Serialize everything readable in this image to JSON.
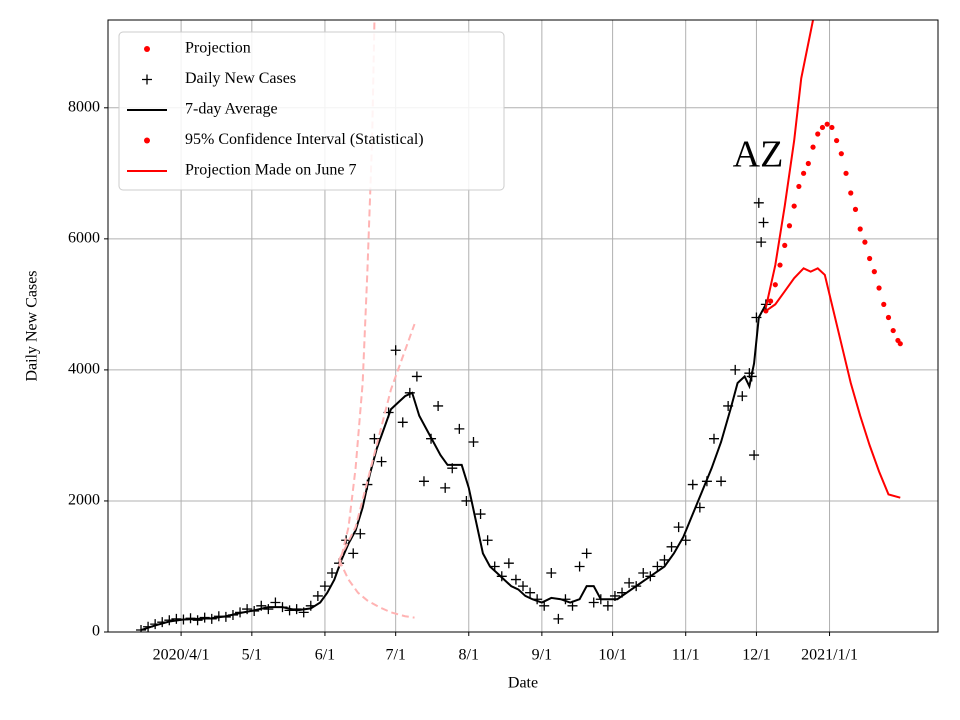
{
  "chart_data": {
    "type": "line",
    "annotation": "AZ",
    "xlabel": "Date",
    "ylabel": "Daily New Cases",
    "xlim": [
      60,
      412
    ],
    "ylim": [
      0,
      9340
    ],
    "xticks": [
      {
        "value": 91,
        "label": "2020/4/1"
      },
      {
        "value": 121,
        "label": "5/1"
      },
      {
        "value": 152,
        "label": "6/1"
      },
      {
        "value": 182,
        "label": "7/1"
      },
      {
        "value": 213,
        "label": "8/1"
      },
      {
        "value": 244,
        "label": "9/1"
      },
      {
        "value": 274,
        "label": "10/1"
      },
      {
        "value": 305,
        "label": "11/1"
      },
      {
        "value": 335,
        "label": "12/1"
      },
      {
        "value": 366,
        "label": "2021/1/1"
      }
    ],
    "yticks": [
      0,
      2000,
      4000,
      6000,
      8000
    ],
    "grid": true,
    "legend": "upper left",
    "series": [
      {
        "name": "Projection",
        "style": "dot",
        "color": "#ff0000",
        "lines": [
          {
            "x": [
              339,
              341,
              343,
              345,
              347,
              349,
              351,
              353,
              355,
              357,
              359,
              361,
              363,
              365,
              367,
              369,
              371,
              373,
              375,
              377,
              379,
              381,
              383,
              385,
              387,
              389,
              391,
              393,
              395,
              396
            ],
            "values": [
              4900,
              5050,
              5300,
              5600,
              5900,
              6200,
              6500,
              6800,
              7000,
              7150,
              7400,
              7600,
              7700,
              7750,
              7700,
              7500,
              7300,
              7000,
              6700,
              6450,
              6150,
              5950,
              5700,
              5500,
              5250,
              5000,
              4800,
              4600,
              4450,
              4400
            ]
          }
        ]
      },
      {
        "name": "Daily New Cases",
        "style": "plus",
        "color": "#000000",
        "lines": [
          {
            "x": [
              74,
              77,
              80,
              83,
              86,
              89,
              92,
              95,
              98,
              101,
              104,
              107,
              110,
              113,
              116,
              119,
              122,
              125,
              128,
              131,
              134,
              137,
              140,
              143,
              146,
              149,
              152,
              155,
              158,
              161,
              164,
              167,
              170,
              173,
              176,
              179,
              182,
              185,
              188,
              191,
              194,
              197,
              200,
              203,
              206,
              209,
              212,
              215,
              218,
              221,
              224,
              227,
              230,
              233,
              236,
              239,
              242,
              245,
              248,
              251,
              254,
              257,
              260,
              263,
              266,
              269,
              272,
              275,
              278,
              281,
              284,
              287,
              290,
              293,
              296,
              299,
              302,
              305,
              308,
              311,
              314,
              317,
              320,
              323,
              326,
              329,
              332,
              333,
              334,
              335,
              336,
              337,
              338,
              339
            ],
            "values": [
              30,
              80,
              120,
              150,
              180,
              200,
              190,
              210,
              180,
              220,
              200,
              240,
              230,
              260,
              300,
              350,
              320,
              400,
              350,
              450,
              380,
              330,
              350,
              300,
              400,
              550,
              700,
              900,
              1050,
              1400,
              1200,
              1500,
              2250,
              2950,
              2600,
              3350,
              4300,
              3200,
              3650,
              3900,
              2300,
              2950,
              3450,
              2200,
              2500,
              3100,
              2000,
              2900,
              1800,
              1400,
              1000,
              850,
              1050,
              800,
              700,
              600,
              500,
              400,
              900,
              200,
              500,
              400,
              1000,
              1200,
              450,
              500,
              400,
              550,
              600,
              750,
              700,
              900,
              850,
              1000,
              1100,
              1300,
              1600,
              1400,
              2250,
              1900,
              2300,
              2950,
              2300,
              3450,
              4000,
              3600,
              3950,
              3900,
              2700,
              4800,
              6550,
              5950,
              6250,
              5000
            ]
          }
        ]
      },
      {
        "name": "7-day Average",
        "style": "line",
        "color": "#000000",
        "lines": [
          {
            "x": [
              74,
              80,
              86,
              92,
              98,
              104,
              110,
              116,
              122,
              128,
              134,
              140,
              146,
              150,
              153,
              156,
              159,
              162,
              165,
              168,
              171,
              174,
              177,
              180,
              183,
              186,
              189,
              192,
              195,
              198,
              201,
              204,
              207,
              210,
              213,
              216,
              219,
              222,
              225,
              228,
              231,
              234,
              237,
              240,
              244,
              248,
              252,
              256,
              260,
              263,
              266,
              269,
              272,
              276,
              280,
              284,
              288,
              292,
              296,
              300,
              304,
              308,
              312,
              316,
              320,
              324,
              327,
              330,
              332,
              334,
              336,
              339
            ],
            "values": [
              30,
              100,
              160,
              190,
              200,
              210,
              240,
              290,
              330,
              380,
              380,
              330,
              360,
              450,
              600,
              800,
              1100,
              1350,
              1550,
              1900,
              2400,
              2800,
              3100,
              3400,
              3500,
              3600,
              3650,
              3300,
              3100,
              2900,
              2700,
              2550,
              2550,
              2550,
              2200,
              1700,
              1200,
              1000,
              900,
              800,
              700,
              650,
              550,
              500,
              450,
              520,
              500,
              450,
              500,
              700,
              700,
              500,
              500,
              500,
              600,
              700,
              800,
              900,
              1000,
              1200,
              1450,
              1800,
              2150,
              2500,
              2900,
              3400,
              3800,
              3900,
              3750,
              4100,
              4800,
              5000
            ]
          }
        ]
      },
      {
        "name": "95% Confidence Interval (Statistical)",
        "style": "line",
        "legend_marker": "dot",
        "color": "#ff0000",
        "lines": [
          {
            "x": [
              339,
              343,
              347,
              351,
              354,
              359
            ],
            "values": [
              4950,
              5600,
              6500,
              7500,
              8450,
              9340
            ]
          },
          {
            "x": [
              339,
              343,
              347,
              351,
              355,
              358,
              361,
              364,
              367,
              371,
              375,
              379,
              383,
              387,
              391,
              396
            ],
            "values": [
              4900,
              5000,
              5200,
              5400,
              5550,
              5500,
              5550,
              5450,
              5000,
              4400,
              3800,
              3300,
              2850,
              2450,
              2100,
              2050
            ]
          }
        ]
      },
      {
        "name": "Projection Made on June 7",
        "style": "dashed",
        "legend_marker": "line",
        "legend_color": "#ff0000",
        "color": "#ffb3b3",
        "lines": [
          {
            "x": [
              158,
              162,
              165,
              168,
              170,
              172,
              173
            ],
            "values": [
              1000,
              1600,
              2500,
              3800,
              5500,
              7500,
              9340
            ]
          },
          {
            "x": [
              158,
              165,
              170,
              175,
              180,
              186,
              190
            ],
            "values": [
              1100,
              1600,
              2300,
              3000,
              3700,
              4300,
              4700
            ]
          },
          {
            "x": [
              158,
              162,
              166,
              170,
              175,
              180,
              186,
              190
            ],
            "values": [
              1100,
              800,
              600,
              480,
              380,
              300,
              240,
              220
            ]
          }
        ]
      }
    ]
  }
}
